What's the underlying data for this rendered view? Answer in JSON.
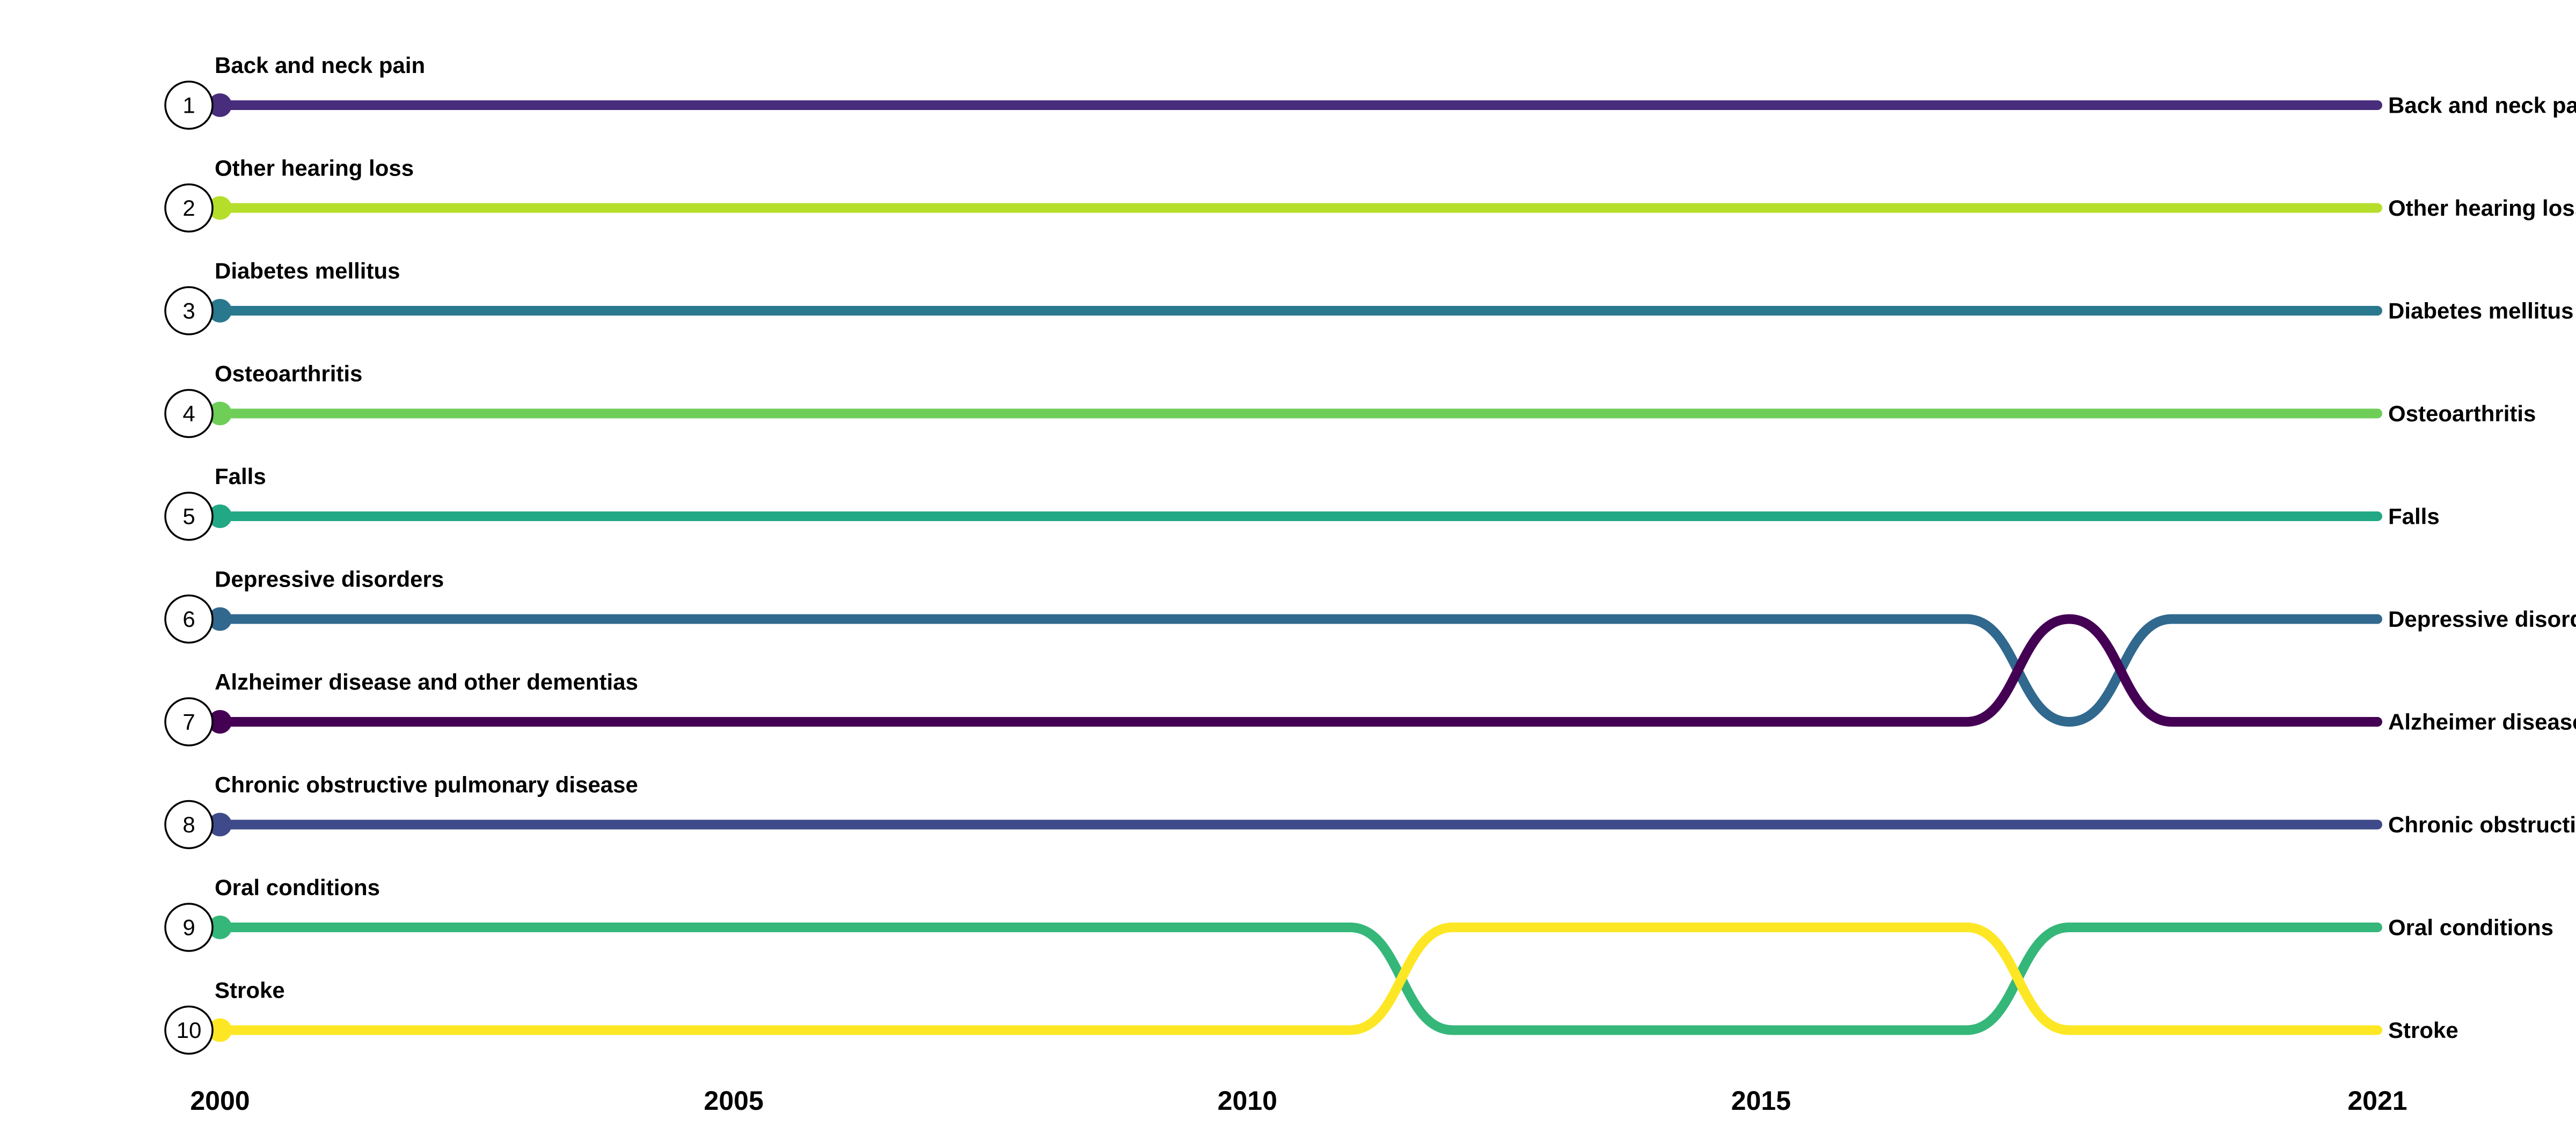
{
  "chart_data": {
    "type": "line",
    "subtype": "bump",
    "title": "",
    "xlabel": "",
    "ylabel": "",
    "x": [
      2000,
      2001,
      2002,
      2003,
      2004,
      2005,
      2006,
      2007,
      2008,
      2009,
      2010,
      2011,
      2012,
      2013,
      2014,
      2015,
      2016,
      2017,
      2018,
      2019,
      2020,
      2021
    ],
    "x_ticks": [
      2000,
      2005,
      2010,
      2015,
      2021
    ],
    "y_reversed": true,
    "rank_labels": [
      "1",
      "2",
      "3",
      "4",
      "5",
      "6",
      "7",
      "8",
      "9",
      "10"
    ],
    "series": [
      {
        "name": "Back and neck pain",
        "color": "#472d7b",
        "values": [
          1,
          1,
          1,
          1,
          1,
          1,
          1,
          1,
          1,
          1,
          1,
          1,
          1,
          1,
          1,
          1,
          1,
          1,
          1,
          1,
          1,
          1
        ]
      },
      {
        "name": "Other hearing loss",
        "color": "#b5de2b",
        "values": [
          2,
          2,
          2,
          2,
          2,
          2,
          2,
          2,
          2,
          2,
          2,
          2,
          2,
          2,
          2,
          2,
          2,
          2,
          2,
          2,
          2,
          2
        ]
      },
      {
        "name": "Diabetes mellitus",
        "color": "#2a788e",
        "values": [
          3,
          3,
          3,
          3,
          3,
          3,
          3,
          3,
          3,
          3,
          3,
          3,
          3,
          3,
          3,
          3,
          3,
          3,
          3,
          3,
          3,
          3
        ]
      },
      {
        "name": "Osteoarthritis",
        "color": "#6ece58",
        "values": [
          4,
          4,
          4,
          4,
          4,
          4,
          4,
          4,
          4,
          4,
          4,
          4,
          4,
          4,
          4,
          4,
          4,
          4,
          4,
          4,
          4,
          4
        ]
      },
      {
        "name": "Falls",
        "color": "#22a884",
        "values": [
          5,
          5,
          5,
          5,
          5,
          5,
          5,
          5,
          5,
          5,
          5,
          5,
          5,
          5,
          5,
          5,
          5,
          5,
          5,
          5,
          5,
          5
        ]
      },
      {
        "name": "Depressive disorders",
        "color": "#31688e",
        "values": [
          6,
          6,
          6,
          6,
          6,
          6,
          6,
          6,
          6,
          6,
          6,
          6,
          6,
          6,
          6,
          6,
          6,
          6,
          7,
          6,
          6,
          6
        ]
      },
      {
        "name": "Alzheimer disease and other dementias",
        "color": "#440154",
        "values": [
          7,
          7,
          7,
          7,
          7,
          7,
          7,
          7,
          7,
          7,
          7,
          7,
          7,
          7,
          7,
          7,
          7,
          7,
          6,
          7,
          7,
          7
        ]
      },
      {
        "name": "Chronic obstructive pulmonary disease",
        "color": "#3e4a89",
        "values": [
          8,
          8,
          8,
          8,
          8,
          8,
          8,
          8,
          8,
          8,
          8,
          8,
          8,
          8,
          8,
          8,
          8,
          8,
          8,
          8,
          8,
          8
        ]
      },
      {
        "name": "Oral conditions",
        "color": "#35b779",
        "values": [
          9,
          9,
          9,
          9,
          9,
          9,
          9,
          9,
          9,
          9,
          9,
          9,
          10,
          10,
          10,
          10,
          10,
          10,
          9,
          9,
          9,
          9
        ]
      },
      {
        "name": "Stroke",
        "color": "#fde725",
        "values": [
          10,
          10,
          10,
          10,
          10,
          10,
          10,
          10,
          10,
          10,
          10,
          10,
          9,
          9,
          9,
          9,
          9,
          9,
          10,
          10,
          10,
          10
        ]
      }
    ]
  }
}
